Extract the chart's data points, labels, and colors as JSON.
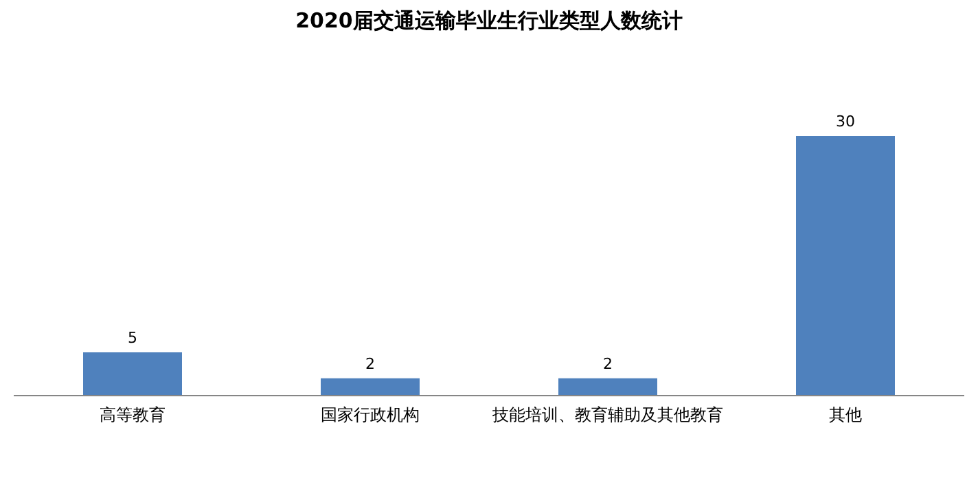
{
  "chart_data": {
    "type": "bar",
    "title": "2020届交通运输毕业生行业类型人数统计",
    "categories": [
      "高等教育",
      "国家行政机构",
      "技能培训、教育辅助及其他教育",
      "其他"
    ],
    "values": [
      5,
      2,
      2,
      30
    ],
    "color": "#4f81bd",
    "data_labels": true
  }
}
